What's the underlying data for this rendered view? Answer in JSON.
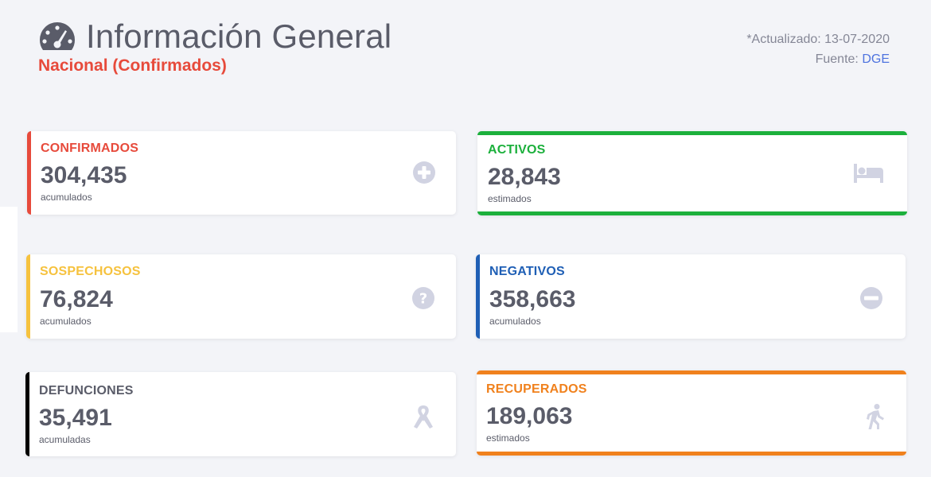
{
  "header": {
    "title": "Información General",
    "subtitle": "Nacional (Confirmados)",
    "updated": "*Actualizado: 13-07-2020",
    "source_label": "Fuente:",
    "source_link": "DGE"
  },
  "cards": {
    "confirmados": {
      "label": "CONFIRMADOS",
      "value": "304,435",
      "sub": "acumulados",
      "color": "#e74a3b",
      "icon": "plus-circle-icon"
    },
    "activos": {
      "label": "ACTIVOS",
      "value": "28,843",
      "sub": "estimados",
      "color": "#1cb03c",
      "icon": "bed-icon"
    },
    "sospechosos": {
      "label": "SOSPECHOSOS",
      "value": "76,824",
      "sub": "acumulados",
      "color": "#f6c23e",
      "icon": "question-circle-icon"
    },
    "negativos": {
      "label": "NEGATIVOS",
      "value": "358,663",
      "sub": "acumulados",
      "color": "#1f5fb5",
      "icon": "minus-circle-icon"
    },
    "defunciones": {
      "label": "DEFUNCIONES",
      "value": "35,491",
      "sub": "acumuladas",
      "color": "#000000",
      "icon": "ribbon-icon"
    },
    "recuperados": {
      "label": "RECUPERADOS",
      "value": "189,063",
      "sub": "estimados",
      "color": "#f0811d",
      "icon": "walking-icon"
    }
  }
}
